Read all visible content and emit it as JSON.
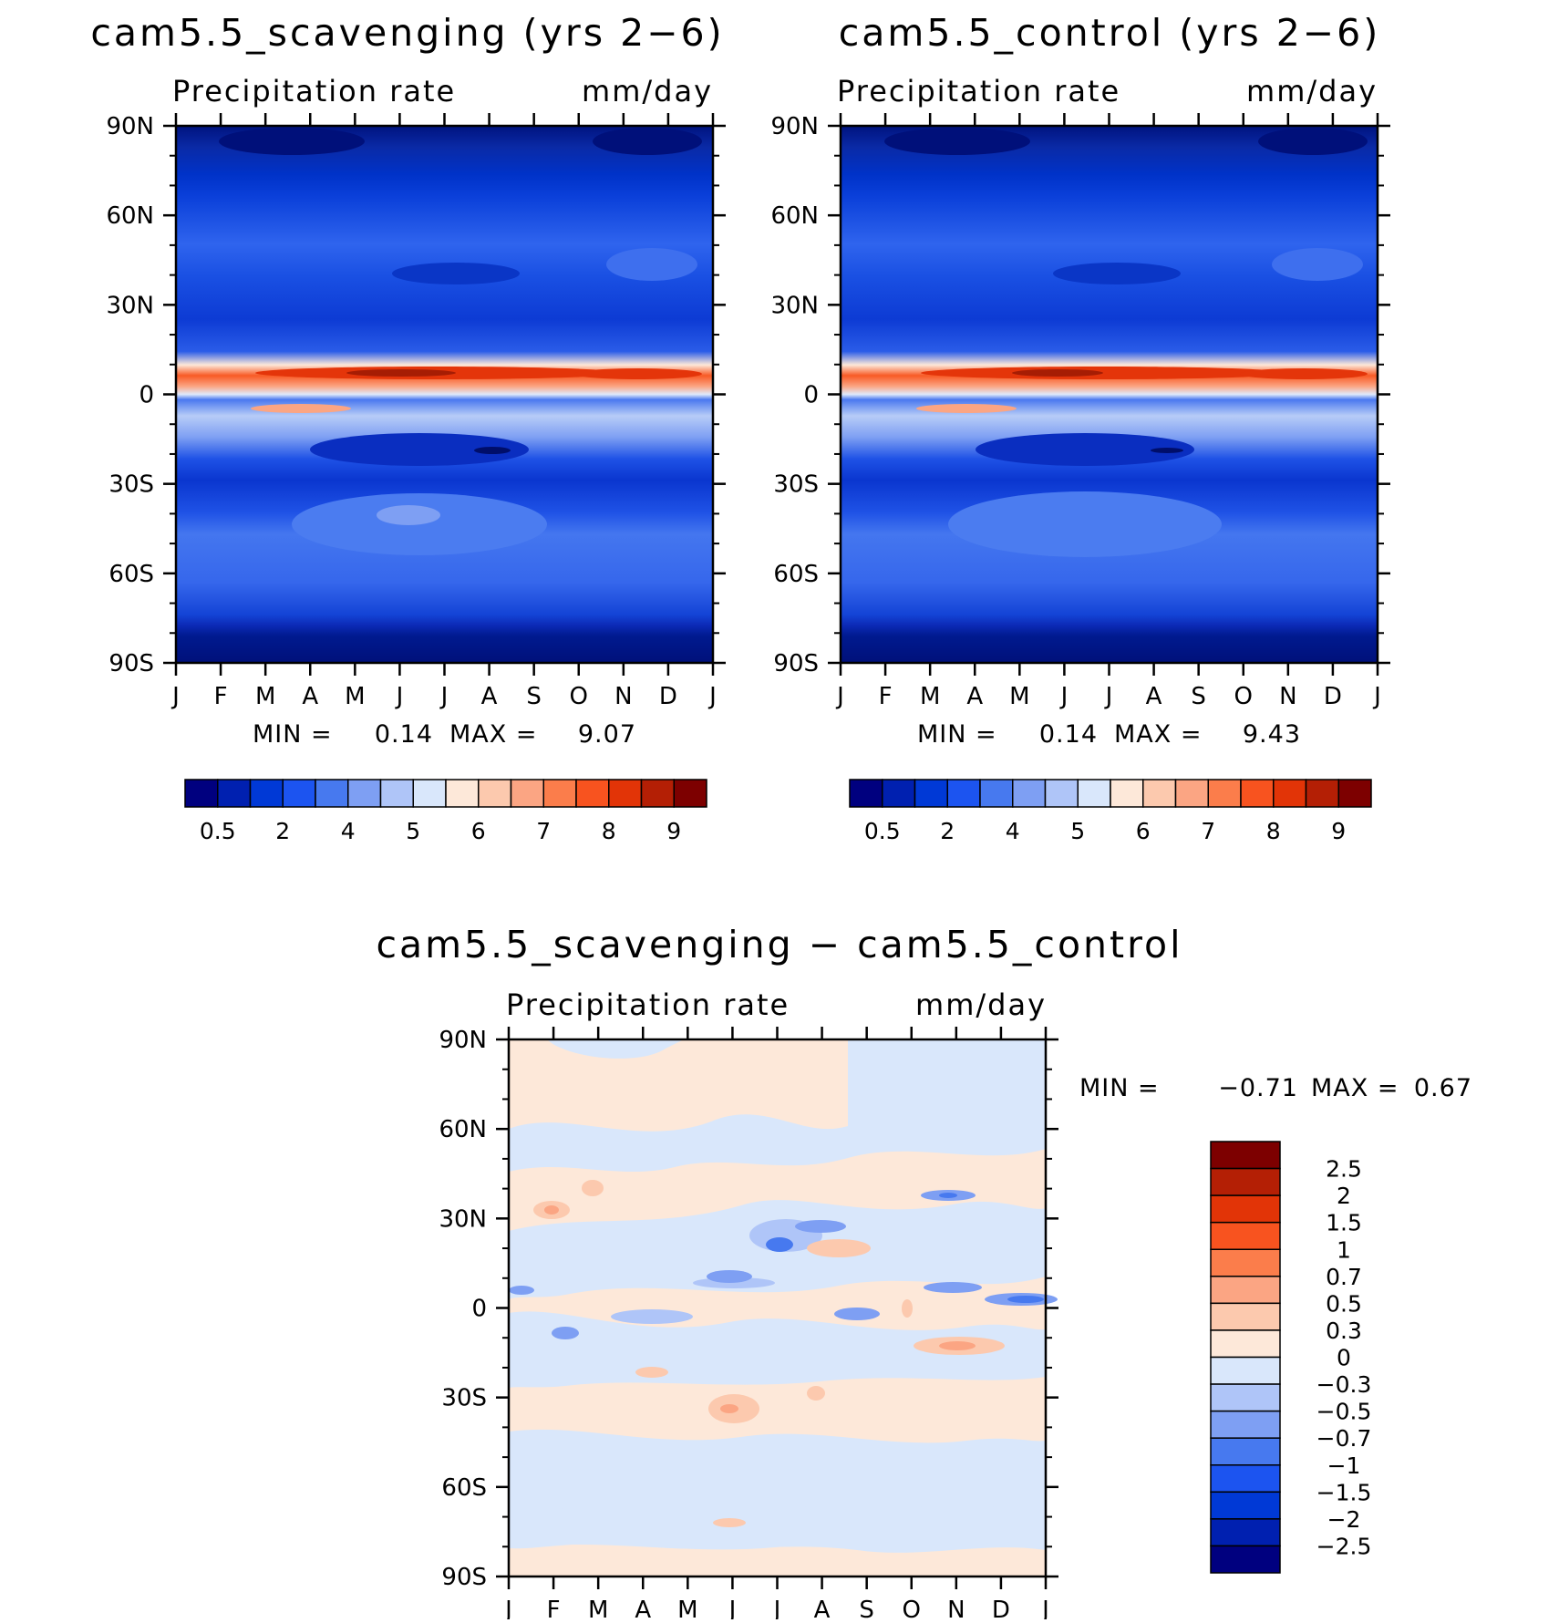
{
  "chart_data": [
    {
      "type": "heatmap",
      "title": "cam5.5_scavenging (yrs 2−6)",
      "left_label": "Precipitation rate",
      "right_label": "mm/day",
      "x_ticks": [
        "J",
        "F",
        "M",
        "A",
        "M",
        "J",
        "J",
        "A",
        "S",
        "O",
        "N",
        "D",
        "J"
      ],
      "y_ticks": [
        "90N",
        "60N",
        "30N",
        "0",
        "30S",
        "60S",
        "90S"
      ],
      "ylim": [
        -90,
        90
      ],
      "min_label": "MIN =",
      "min_value": "0.14",
      "max_label": "MAX =",
      "max_value": "9.07",
      "colorbar_labels": [
        "0.5",
        "2",
        "4",
        "5",
        "6",
        "7",
        "8",
        "9"
      ],
      "colors": [
        "#00007f",
        "#0020b0",
        "#0039d6",
        "#1c54f0",
        "#4779ef",
        "#7e9ff3",
        "#afc5f8",
        "#d9e7fb",
        "#fde8d9",
        "#fcc9ae",
        "#fba583",
        "#fb7d4b",
        "#f8531f",
        "#e23407",
        "#b41f05",
        "#7d0000"
      ],
      "zonal_profile": {
        "latitude": [
          90,
          80,
          70,
          60,
          50,
          40,
          30,
          20,
          10,
          6,
          3,
          0,
          -5,
          -10,
          -15,
          -20,
          -30,
          -40,
          -50,
          -60,
          -70,
          -80,
          -90
        ],
        "precip_mm_day": [
          0.3,
          0.6,
          1.5,
          2.5,
          3.5,
          3.2,
          2,
          1.6,
          5,
          8.5,
          7,
          4,
          6,
          5,
          3.5,
          2.5,
          2,
          3,
          3.2,
          3,
          2,
          0.8,
          0.2
        ]
      }
    },
    {
      "type": "heatmap",
      "title": "cam5.5_control (yrs 2−6)",
      "left_label": "Precipitation rate",
      "right_label": "mm/day",
      "x_ticks": [
        "J",
        "F",
        "M",
        "A",
        "M",
        "J",
        "J",
        "A",
        "S",
        "O",
        "N",
        "D",
        "J"
      ],
      "y_ticks": [
        "90N",
        "60N",
        "30N",
        "0",
        "30S",
        "60S",
        "90S"
      ],
      "ylim": [
        -90,
        90
      ],
      "min_label": "MIN =",
      "min_value": "0.14",
      "max_label": "MAX =",
      "max_value": "9.43",
      "colorbar_labels": [
        "0.5",
        "2",
        "4",
        "5",
        "6",
        "7",
        "8",
        "9"
      ],
      "colors": [
        "#00007f",
        "#0020b0",
        "#0039d6",
        "#1c54f0",
        "#4779ef",
        "#7e9ff3",
        "#afc5f8",
        "#d9e7fb",
        "#fde8d9",
        "#fcc9ae",
        "#fba583",
        "#fb7d4b",
        "#f8531f",
        "#e23407",
        "#b41f05",
        "#7d0000"
      ],
      "zonal_profile": {
        "latitude": [
          90,
          80,
          70,
          60,
          50,
          40,
          30,
          20,
          10,
          6,
          3,
          0,
          -5,
          -10,
          -15,
          -20,
          -30,
          -40,
          -50,
          -60,
          -70,
          -80,
          -90
        ],
        "precip_mm_day": [
          0.3,
          0.6,
          1.5,
          2.5,
          3.5,
          3.2,
          2,
          1.6,
          5,
          8.8,
          7,
          4,
          6,
          5,
          3.5,
          2.5,
          2,
          3,
          3.2,
          3,
          2,
          0.8,
          0.2
        ]
      }
    },
    {
      "type": "heatmap",
      "title": "cam5.5_scavenging − cam5.5_control",
      "left_label": "Precipitation rate",
      "right_label": "mm/day",
      "x_ticks": [
        "J",
        "F",
        "M",
        "A",
        "M",
        "J",
        "J",
        "A",
        "S",
        "O",
        "N",
        "D",
        "J"
      ],
      "y_ticks": [
        "90N",
        "60N",
        "30N",
        "0",
        "30S",
        "60S",
        "90S"
      ],
      "ylim": [
        -90,
        90
      ],
      "min_label": "MIN =",
      "min_value": "−0.71",
      "max_label": "MAX =",
      "max_value": "0.67",
      "colorbar_labels": [
        "2.5",
        "2",
        "1.5",
        "1",
        "0.7",
        "0.5",
        "0.3",
        "0",
        "−0.3",
        "−0.5",
        "−0.7",
        "−1",
        "−1.5",
        "−2",
        "−2.5"
      ],
      "colors": [
        "#7d0000",
        "#b41f05",
        "#e23407",
        "#f8531f",
        "#fb7d4b",
        "#fba583",
        "#fcc9ae",
        "#fde8d9",
        "#d9e7fb",
        "#afc5f8",
        "#7e9ff3",
        "#4779ef",
        "#1c54f0",
        "#0039d6",
        "#0020b0",
        "#00007f"
      ]
    }
  ]
}
